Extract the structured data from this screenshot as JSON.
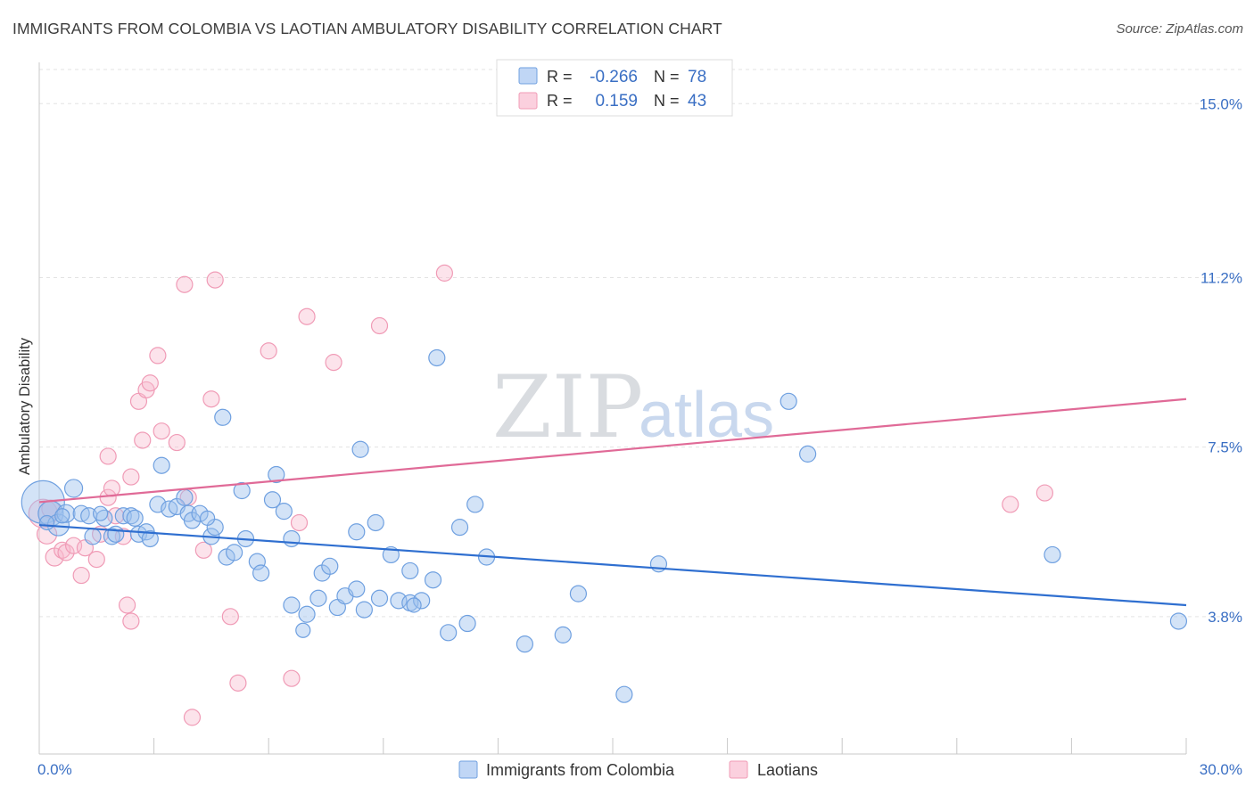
{
  "header": {
    "title": "IMMIGRANTS FROM COLOMBIA VS LAOTIAN AMBULATORY DISABILITY CORRELATION CHART",
    "source": "Source: ZipAtlas.com"
  },
  "watermark": {
    "zip": "ZIP",
    "atlas": "atlas"
  },
  "stats_legend": [
    {
      "r_label": "R =",
      "r_value": "-0.266",
      "n_label": "N =",
      "n_value": "78",
      "color": "#6fa0e0"
    },
    {
      "r_label": "R =",
      "r_value": "0.159",
      "n_label": "N =",
      "n_value": "43",
      "color": "#f09bb6"
    }
  ],
  "bottom_legend": [
    {
      "label": "Immigrants from Colombia",
      "color": "#6fa0e0"
    },
    {
      "label": "Laotians",
      "color": "#f09bb6"
    }
  ],
  "chart_data": {
    "type": "scatter",
    "title": "IMMIGRANTS FROM COLOMBIA VS LAOTIAN AMBULATORY DISABILITY CORRELATION CHART",
    "xlabel": "",
    "ylabel": "Ambulatory Disability",
    "xlim": [
      0,
      30
    ],
    "ylim": [
      0.8,
      15.9
    ],
    "x_tick_labels": [
      "0.0%",
      "30.0%"
    ],
    "y_ticks": [
      3.8,
      7.5,
      11.2,
      15.0
    ],
    "y_tick_labels": [
      "3.8%",
      "7.5%",
      "11.2%",
      "15.0%"
    ],
    "grid": "horizontal dashed",
    "series": [
      {
        "name": "Immigrants from Colombia",
        "color": "#6fa0e0",
        "trend": {
          "x": [
            0,
            30
          ],
          "y": [
            5.8,
            4.05
          ]
        },
        "points": [
          [
            0.1,
            6.3,
            24
          ],
          [
            0.3,
            6.05,
            14
          ],
          [
            0.5,
            5.8,
            12
          ],
          [
            0.7,
            6.05,
            10
          ],
          [
            0.9,
            6.6,
            10
          ],
          [
            1.1,
            6.05,
            9
          ],
          [
            1.3,
            6.0,
            9
          ],
          [
            1.4,
            5.55,
            9
          ],
          [
            1.7,
            5.95,
            9
          ],
          [
            1.9,
            5.55,
            9
          ],
          [
            2.0,
            5.6,
            9
          ],
          [
            2.2,
            6.0,
            9
          ],
          [
            2.4,
            6.0,
            9
          ],
          [
            2.5,
            5.95,
            9
          ],
          [
            2.6,
            5.6,
            9
          ],
          [
            2.8,
            5.65,
            9
          ],
          [
            2.9,
            5.5,
            9
          ],
          [
            3.1,
            6.25,
            9
          ],
          [
            3.2,
            7.1,
            9
          ],
          [
            3.4,
            6.15,
            9
          ],
          [
            3.6,
            6.2,
            9
          ],
          [
            3.8,
            6.4,
            9
          ],
          [
            3.9,
            6.05,
            9
          ],
          [
            4.0,
            5.9,
            9
          ],
          [
            4.2,
            6.05,
            9
          ],
          [
            4.5,
            5.55,
            9
          ],
          [
            4.6,
            5.75,
            9
          ],
          [
            4.8,
            8.15,
            9
          ],
          [
            4.9,
            5.1,
            9
          ],
          [
            5.1,
            5.2,
            9
          ],
          [
            5.3,
            6.55,
            9
          ],
          [
            5.4,
            5.5,
            9
          ],
          [
            5.7,
            5.0,
            9
          ],
          [
            5.8,
            4.75,
            9
          ],
          [
            6.1,
            6.35,
            9
          ],
          [
            6.2,
            6.9,
            9
          ],
          [
            6.4,
            6.1,
            9
          ],
          [
            6.6,
            5.5,
            9
          ],
          [
            6.6,
            4.05,
            9
          ],
          [
            7.0,
            3.85,
            9
          ],
          [
            7.3,
            4.2,
            9
          ],
          [
            7.4,
            4.75,
            9
          ],
          [
            7.6,
            4.9,
            9
          ],
          [
            7.8,
            4.0,
            9
          ],
          [
            8.0,
            4.25,
            9
          ],
          [
            8.3,
            4.4,
            9
          ],
          [
            8.3,
            5.65,
            9
          ],
          [
            8.4,
            7.45,
            9
          ],
          [
            8.5,
            3.95,
            9
          ],
          [
            8.8,
            5.85,
            9
          ],
          [
            8.9,
            4.2,
            9
          ],
          [
            9.2,
            5.15,
            9
          ],
          [
            9.4,
            4.15,
            9
          ],
          [
            9.7,
            4.1,
            9
          ],
          [
            9.7,
            4.8,
            9
          ],
          [
            10.0,
            4.15,
            9
          ],
          [
            10.3,
            4.6,
            9
          ],
          [
            10.4,
            9.45,
            9
          ],
          [
            10.7,
            3.45,
            9
          ],
          [
            11.0,
            5.75,
            9
          ],
          [
            11.2,
            3.65,
            9
          ],
          [
            11.4,
            6.25,
            9
          ],
          [
            11.7,
            5.1,
            9
          ],
          [
            12.7,
            3.2,
            9
          ],
          [
            13.7,
            3.4,
            9
          ],
          [
            14.1,
            4.3,
            9
          ],
          [
            15.3,
            2.1,
            9
          ],
          [
            16.2,
            4.95,
            9
          ],
          [
            19.6,
            8.5,
            9
          ],
          [
            20.1,
            7.35,
            9
          ],
          [
            26.5,
            5.15,
            9
          ],
          [
            29.8,
            3.7,
            9
          ],
          [
            0.2,
            5.85,
            8
          ],
          [
            0.6,
            6.0,
            8
          ],
          [
            1.6,
            6.05,
            8
          ],
          [
            4.4,
            5.95,
            8
          ],
          [
            6.9,
            3.5,
            8
          ],
          [
            9.8,
            4.05,
            8
          ]
        ]
      },
      {
        "name": "Laotians",
        "color": "#f09bb6",
        "trend": {
          "x": [
            0,
            30
          ],
          "y": [
            6.3,
            8.55
          ]
        },
        "points": [
          [
            0.1,
            6.05,
            16
          ],
          [
            0.2,
            5.6,
            11
          ],
          [
            0.3,
            6.15,
            10
          ],
          [
            0.4,
            5.1,
            10
          ],
          [
            0.6,
            5.25,
            9
          ],
          [
            0.7,
            5.2,
            9
          ],
          [
            0.9,
            5.35,
            9
          ],
          [
            1.1,
            4.7,
            9
          ],
          [
            1.2,
            5.3,
            9
          ],
          [
            1.5,
            5.05,
            9
          ],
          [
            1.6,
            5.6,
            9
          ],
          [
            1.8,
            6.4,
            9
          ],
          [
            1.8,
            7.3,
            9
          ],
          [
            1.9,
            6.6,
            9
          ],
          [
            2.0,
            6.0,
            9
          ],
          [
            2.2,
            5.55,
            9
          ],
          [
            2.3,
            4.05,
            9
          ],
          [
            2.4,
            3.7,
            9
          ],
          [
            2.4,
            6.85,
            9
          ],
          [
            2.6,
            8.5,
            9
          ],
          [
            2.7,
            7.65,
            9
          ],
          [
            2.8,
            8.75,
            9
          ],
          [
            2.9,
            8.9,
            9
          ],
          [
            3.1,
            9.5,
            9
          ],
          [
            3.2,
            7.85,
            9
          ],
          [
            3.6,
            7.6,
            9
          ],
          [
            3.8,
            11.05,
            9
          ],
          [
            3.9,
            6.4,
            9
          ],
          [
            4.0,
            1.6,
            9
          ],
          [
            4.3,
            5.25,
            9
          ],
          [
            4.5,
            8.55,
            9
          ],
          [
            4.6,
            11.15,
            9
          ],
          [
            5.0,
            3.8,
            9
          ],
          [
            5.2,
            2.35,
            9
          ],
          [
            6.0,
            9.6,
            9
          ],
          [
            6.6,
            2.45,
            9
          ],
          [
            6.8,
            5.85,
            9
          ],
          [
            7.0,
            10.35,
            9
          ],
          [
            7.7,
            9.35,
            9
          ],
          [
            8.9,
            10.15,
            9
          ],
          [
            10.6,
            11.3,
            9
          ],
          [
            25.4,
            6.25,
            9
          ],
          [
            26.3,
            6.5,
            9
          ]
        ]
      }
    ]
  }
}
